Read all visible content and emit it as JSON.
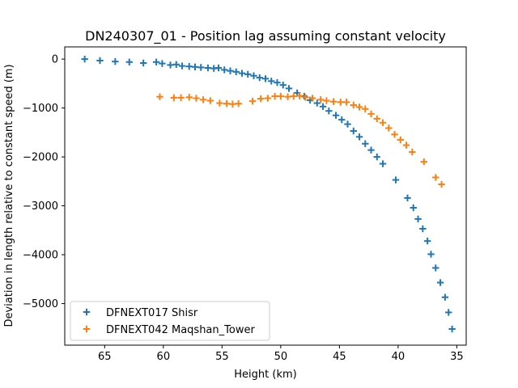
{
  "chart_data": {
    "type": "scatter",
    "title": "DN240307_01 - Position lag assuming constant velocity",
    "xlabel": "Height (km)",
    "ylabel": "Deviation in length relative to constant speed (m)",
    "xlim": [
      68.4,
      34.2
    ],
    "ylim": [
      -5850,
      250
    ],
    "xticks": [
      {
        "value": 65,
        "label": "65"
      },
      {
        "value": 60,
        "label": "60"
      },
      {
        "value": 55,
        "label": "55"
      },
      {
        "value": 50,
        "label": "50"
      },
      {
        "value": 45,
        "label": "45"
      },
      {
        "value": 40,
        "label": "40"
      },
      {
        "value": 35,
        "label": "35"
      }
    ],
    "yticks": [
      {
        "value": 0,
        "label": "0"
      },
      {
        "value": -1000,
        "label": "−1000"
      },
      {
        "value": -2000,
        "label": "−2000"
      },
      {
        "value": -3000,
        "label": "−3000"
      },
      {
        "value": -4000,
        "label": "−4000"
      },
      {
        "value": -5000,
        "label": "−5000"
      }
    ],
    "grid": false,
    "legend_position": "lower-left",
    "marker": "+",
    "series": [
      {
        "name": "DFNEXT017 Shisr",
        "color": "#1f77b4",
        "points": [
          [
            66.7,
            0
          ],
          [
            65.4,
            -30
          ],
          [
            64.1,
            -50
          ],
          [
            62.9,
            -60
          ],
          [
            61.7,
            -80
          ],
          [
            60.6,
            -60
          ],
          [
            60.1,
            -90
          ],
          [
            59.4,
            -120
          ],
          [
            58.9,
            -110
          ],
          [
            58.4,
            -140
          ],
          [
            57.8,
            -150
          ],
          [
            57.3,
            -160
          ],
          [
            56.8,
            -170
          ],
          [
            56.2,
            -180
          ],
          [
            55.7,
            -190
          ],
          [
            55.3,
            -180
          ],
          [
            54.8,
            -220
          ],
          [
            54.3,
            -240
          ],
          [
            53.8,
            -260
          ],
          [
            53.3,
            -290
          ],
          [
            52.8,
            -310
          ],
          [
            52.3,
            -340
          ],
          [
            51.8,
            -380
          ],
          [
            51.3,
            -400
          ],
          [
            50.8,
            -450
          ],
          [
            50.3,
            -480
          ],
          [
            49.8,
            -530
          ],
          [
            49.3,
            -600
          ],
          [
            48.6,
            -690
          ],
          [
            48.0,
            -760
          ],
          [
            47.5,
            -840
          ],
          [
            46.9,
            -900
          ],
          [
            46.4,
            -970
          ],
          [
            45.9,
            -1060
          ],
          [
            45.3,
            -1150
          ],
          [
            44.8,
            -1240
          ],
          [
            44.3,
            -1330
          ],
          [
            43.8,
            -1470
          ],
          [
            43.3,
            -1590
          ],
          [
            42.8,
            -1730
          ],
          [
            42.3,
            -1860
          ],
          [
            41.8,
            -2000
          ],
          [
            41.3,
            -2140
          ],
          [
            40.2,
            -2470
          ],
          [
            39.2,
            -2840
          ],
          [
            38.7,
            -3040
          ],
          [
            38.3,
            -3270
          ],
          [
            37.9,
            -3470
          ],
          [
            37.5,
            -3720
          ],
          [
            37.2,
            -3990
          ],
          [
            36.8,
            -4270
          ],
          [
            36.4,
            -4570
          ],
          [
            36.0,
            -4870
          ],
          [
            35.7,
            -5180
          ],
          [
            35.4,
            -5520
          ]
        ]
      },
      {
        "name": "DFNEXT042 Maqshan_Tower",
        "color": "#ff7f0e",
        "points": [
          [
            60.3,
            -770
          ],
          [
            59.1,
            -790
          ],
          [
            58.5,
            -790
          ],
          [
            57.8,
            -780
          ],
          [
            57.2,
            -800
          ],
          [
            56.6,
            -830
          ],
          [
            56.0,
            -850
          ],
          [
            55.2,
            -900
          ],
          [
            54.6,
            -910
          ],
          [
            54.1,
            -920
          ],
          [
            53.6,
            -910
          ],
          [
            52.4,
            -860
          ],
          [
            51.7,
            -810
          ],
          [
            51.1,
            -800
          ],
          [
            50.5,
            -760
          ],
          [
            50.0,
            -760
          ],
          [
            49.4,
            -770
          ],
          [
            48.9,
            -760
          ],
          [
            48.4,
            -750
          ],
          [
            47.9,
            -780
          ],
          [
            47.3,
            -800
          ],
          [
            46.6,
            -830
          ],
          [
            46.1,
            -850
          ],
          [
            45.5,
            -870
          ],
          [
            44.9,
            -880
          ],
          [
            44.4,
            -880
          ],
          [
            43.8,
            -940
          ],
          [
            43.3,
            -980
          ],
          [
            42.8,
            -1020
          ],
          [
            42.3,
            -1120
          ],
          [
            41.8,
            -1220
          ],
          [
            41.3,
            -1300
          ],
          [
            40.8,
            -1410
          ],
          [
            40.3,
            -1540
          ],
          [
            39.8,
            -1650
          ],
          [
            39.3,
            -1760
          ],
          [
            38.8,
            -1900
          ],
          [
            37.8,
            -2100
          ],
          [
            36.8,
            -2420
          ],
          [
            36.3,
            -2560
          ]
        ]
      }
    ]
  }
}
